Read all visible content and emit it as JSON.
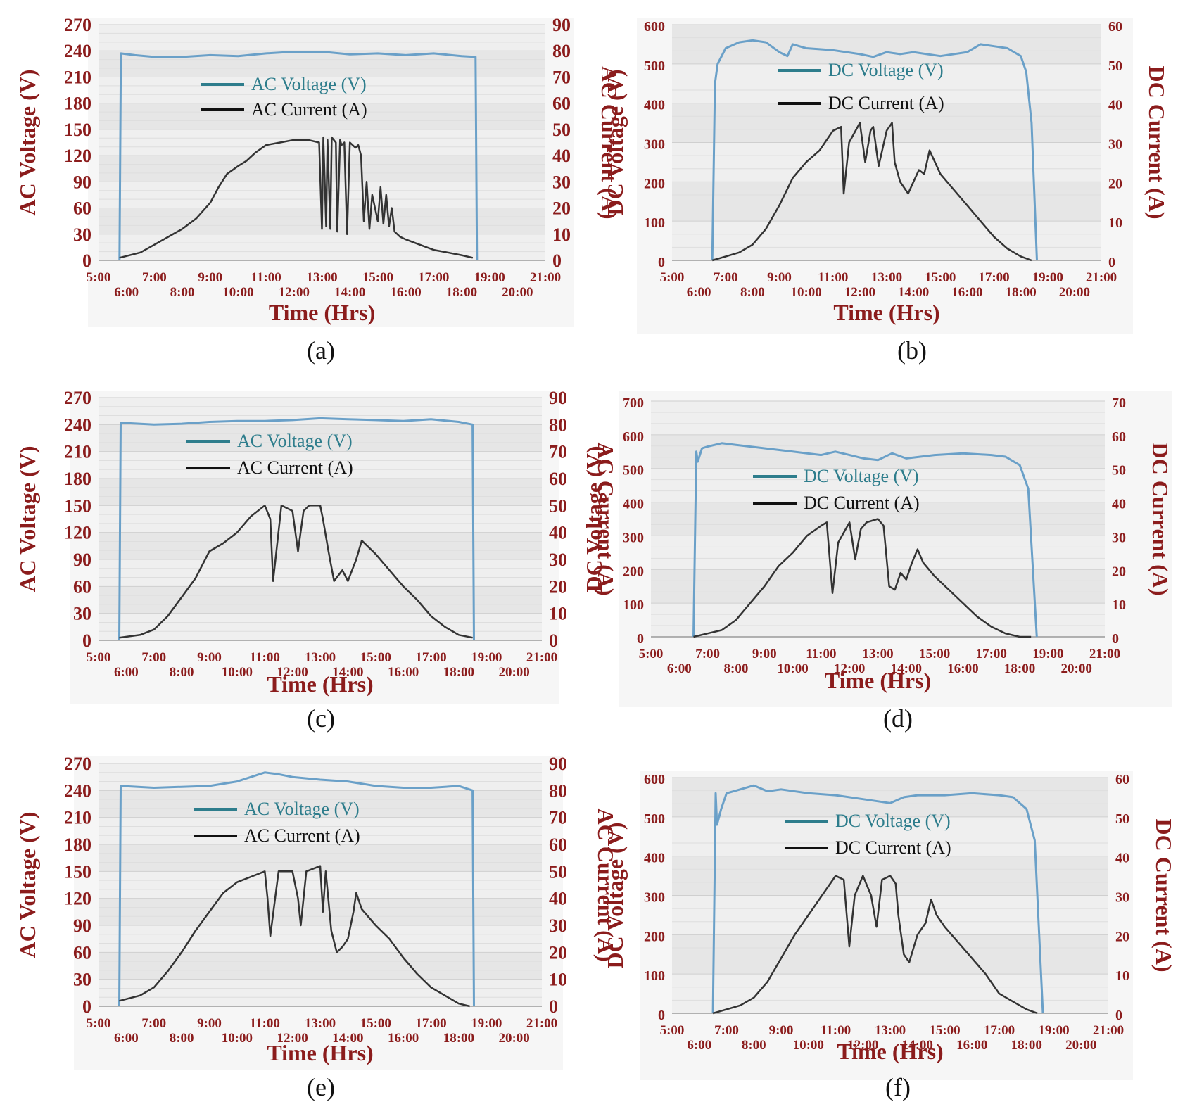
{
  "chart_data": [
    {
      "panel": "a",
      "kind": "AC",
      "type": "line",
      "caption": "(a)",
      "xlabel": "Time (Hrs)",
      "ylabel_left": "AC Voltage (V)",
      "ylabel_right": "AC Current (A)",
      "x_range": [
        5,
        21
      ],
      "x_ticks_upper": [
        "5:00",
        "7:00",
        "9:00",
        "11:00",
        "13:00",
        "15:00",
        "17:00",
        "19:00",
        "21:00"
      ],
      "x_ticks_lower": [
        "6:00",
        "8:00",
        "10:00",
        "12:00",
        "14:00",
        "16:00",
        "18:00",
        "20:00"
      ],
      "y_left_ticks": [
        "0",
        "30",
        "60",
        "90",
        "120",
        "150",
        "180",
        "210",
        "240",
        "270"
      ],
      "y_left_range": [
        0,
        270
      ],
      "y_right_ticks": [
        "0",
        "10",
        "20",
        "30",
        "40",
        "50",
        "60",
        "70",
        "80",
        "90"
      ],
      "y_right_range": [
        0,
        90
      ],
      "grid": true,
      "series": [
        {
          "name": "AC Voltage (V)",
          "color": "#6aa0c8",
          "axis": "left",
          "x": [
            5.75,
            5.8,
            6.3,
            7,
            8,
            9,
            10,
            11,
            12,
            13,
            14,
            15,
            16,
            17,
            18,
            18.5,
            18.55
          ],
          "y": [
            0,
            237,
            235,
            233,
            233,
            235,
            234,
            237,
            239,
            239,
            236,
            237,
            235,
            237,
            234,
            233,
            0
          ]
        },
        {
          "name": "AC Current (A)",
          "color": "#333333",
          "axis": "right",
          "x": [
            5.75,
            6.5,
            7,
            7.5,
            8,
            8.5,
            9,
            9.3,
            9.6,
            10,
            10.3,
            10.6,
            11,
            11.5,
            12,
            12.5,
            12.9,
            13.0,
            13.05,
            13.15,
            13.2,
            13.3,
            13.35,
            13.5,
            13.55,
            13.65,
            13.7,
            13.8,
            13.9,
            14,
            14.2,
            14.3,
            14.4,
            14.5,
            14.6,
            14.7,
            14.8,
            15,
            15.1,
            15.2,
            15.3,
            15.4,
            15.5,
            15.6,
            15.8,
            16,
            16.5,
            17,
            17.5,
            18,
            18.4
          ],
          "y": [
            1,
            3,
            6,
            9,
            12,
            16,
            22,
            28,
            33,
            36,
            38,
            41,
            44,
            45,
            46,
            46,
            45,
            12,
            47,
            13,
            46,
            12,
            47,
            45,
            11,
            46,
            44,
            45,
            10,
            45,
            43,
            44,
            40,
            15,
            30,
            12,
            25,
            15,
            28,
            14,
            25,
            13,
            20,
            11,
            9,
            8,
            6,
            4,
            3,
            2,
            1
          ]
        }
      ]
    },
    {
      "panel": "b",
      "kind": "DC",
      "type": "line",
      "caption": "(b)",
      "xlabel": "Time (Hrs)",
      "ylabel_left": "DC Voltage (V)",
      "ylabel_right": "DC Current (A)",
      "x_range": [
        5,
        21
      ],
      "x_ticks_upper": [
        "5:00",
        "7:00",
        "9:00",
        "11:00",
        "13:00",
        "15:00",
        "17:00",
        "19:00",
        "21:00"
      ],
      "x_ticks_lower": [
        "6:00",
        "8:00",
        "10:00",
        "12:00",
        "14:00",
        "16:00",
        "18:00",
        "20:00"
      ],
      "y_left_ticks": [
        "0",
        "100",
        "200",
        "300",
        "400",
        "500",
        "600"
      ],
      "y_left_range": [
        0,
        600
      ],
      "y_right_ticks": [
        "0",
        "10",
        "20",
        "30",
        "40",
        "50",
        "60"
      ],
      "y_right_range": [
        0,
        60
      ],
      "grid": true,
      "series": [
        {
          "name": "DC Voltage (V)",
          "color": "#6aa0c8",
          "axis": "left",
          "x": [
            6.5,
            6.6,
            6.7,
            7,
            7.5,
            8,
            8.5,
            9,
            9.3,
            9.5,
            10,
            11,
            12,
            12.5,
            13,
            13.5,
            14,
            15,
            16,
            16.5,
            17,
            17.5,
            18,
            18.2,
            18.4,
            18.6
          ],
          "y": [
            0,
            450,
            500,
            540,
            555,
            560,
            555,
            530,
            520,
            550,
            540,
            535,
            525,
            518,
            530,
            525,
            530,
            520,
            530,
            550,
            545,
            540,
            520,
            480,
            350,
            0
          ]
        },
        {
          "name": "DC Current (A)",
          "color": "#333333",
          "axis": "right",
          "x": [
            6.5,
            7,
            7.5,
            8,
            8.5,
            9,
            9.5,
            10,
            10.5,
            11,
            11.3,
            11.4,
            11.6,
            12,
            12.2,
            12.4,
            12.5,
            12.7,
            13,
            13.2,
            13.3,
            13.5,
            13.8,
            14,
            14.2,
            14.4,
            14.6,
            15,
            15.5,
            16,
            16.5,
            17,
            17.5,
            18,
            18.4
          ],
          "y": [
            0,
            1,
            2,
            4,
            8,
            14,
            21,
            25,
            28,
            33,
            34,
            17,
            30,
            35,
            25,
            33,
            34,
            24,
            33,
            35,
            25,
            20,
            17,
            20,
            23,
            22,
            28,
            22,
            18,
            14,
            10,
            6,
            3,
            1,
            0
          ]
        }
      ]
    },
    {
      "panel": "c",
      "kind": "AC",
      "type": "line",
      "caption": "(c)",
      "xlabel": "Time (Hrs)",
      "ylabel_left": "AC Voltage (V)",
      "ylabel_right": "AC Current (A)",
      "x_range": [
        5,
        21
      ],
      "x_ticks_upper": [
        "5:00",
        "7:00",
        "9:00",
        "11:00",
        "13:00",
        "15:00",
        "17:00",
        "19:00",
        "21:00"
      ],
      "x_ticks_lower": [
        "6:00",
        "8:00",
        "10:00",
        "12:00",
        "14:00",
        "16:00",
        "18:00",
        "20:00"
      ],
      "y_left_ticks": [
        "0",
        "30",
        "60",
        "90",
        "120",
        "150",
        "180",
        "210",
        "240",
        "270"
      ],
      "y_left_range": [
        0,
        270
      ],
      "y_right_ticks": [
        "0",
        "10",
        "20",
        "30",
        "40",
        "50",
        "60",
        "70",
        "80",
        "90"
      ],
      "y_right_range": [
        0,
        90
      ],
      "grid": true,
      "series": [
        {
          "name": "AC Voltage (V)",
          "color": "#6aa0c8",
          "axis": "left",
          "x": [
            5.75,
            5.8,
            7,
            8,
            9,
            10,
            11,
            12,
            13,
            14,
            15,
            16,
            17,
            18,
            18.5,
            18.55
          ],
          "y": [
            0,
            242,
            240,
            241,
            243,
            244,
            244,
            245,
            247,
            246,
            245,
            244,
            246,
            243,
            240,
            0
          ]
        },
        {
          "name": "AC Current (A)",
          "color": "#333333",
          "axis": "right",
          "x": [
            5.75,
            6.5,
            7,
            7.5,
            8,
            8.5,
            9,
            9.5,
            10,
            10.5,
            11,
            11.2,
            11.3,
            11.6,
            12,
            12.2,
            12.4,
            12.6,
            13,
            13.1,
            13.3,
            13.5,
            13.8,
            14,
            14.3,
            14.5,
            15,
            15.5,
            16,
            16.5,
            17,
            17.5,
            18,
            18.5
          ],
          "y": [
            1,
            2,
            4,
            9,
            16,
            23,
            33,
            36,
            40,
            46,
            50,
            45,
            22,
            50,
            48,
            33,
            48,
            50,
            50,
            45,
            33,
            22,
            26,
            22,
            30,
            37,
            32,
            26,
            20,
            15,
            9,
            5,
            2,
            1
          ]
        }
      ]
    },
    {
      "panel": "d",
      "kind": "DC",
      "type": "line",
      "caption": "(d)",
      "xlabel": "Time (Hrs)",
      "ylabel_left": "DC Voltage (V)",
      "ylabel_right": "DC Current (A)",
      "x_range": [
        5,
        21
      ],
      "x_ticks_upper": [
        "5:00",
        "7:00",
        "9:00",
        "11:00",
        "13:00",
        "15:00",
        "17:00",
        "19:00",
        "21:00"
      ],
      "x_ticks_lower": [
        "6:00",
        "8:00",
        "10:00",
        "12:00",
        "14:00",
        "16:00",
        "18:00",
        "20:00"
      ],
      "y_left_ticks": [
        "0",
        "100",
        "200",
        "300",
        "400",
        "500",
        "600",
        "700"
      ],
      "y_left_range": [
        0,
        700
      ],
      "y_right_ticks": [
        "0",
        "10",
        "20",
        "30",
        "40",
        "50",
        "60",
        "70"
      ],
      "y_right_range": [
        0,
        70
      ],
      "grid": true,
      "series": [
        {
          "name": "DC Voltage (V)",
          "color": "#6aa0c8",
          "axis": "left",
          "x": [
            6.5,
            6.6,
            6.65,
            6.8,
            7,
            7.5,
            8,
            9,
            10,
            11,
            11.5,
            12,
            12.5,
            13,
            13.5,
            14,
            15,
            16,
            17,
            17.5,
            18,
            18.3,
            18.6
          ],
          "y": [
            0,
            550,
            520,
            560,
            565,
            575,
            570,
            560,
            550,
            540,
            550,
            540,
            530,
            525,
            545,
            530,
            540,
            545,
            540,
            535,
            510,
            440,
            0
          ]
        },
        {
          "name": "DC Current (A)",
          "color": "#333333",
          "axis": "right",
          "x": [
            6.5,
            7,
            7.5,
            8,
            8.5,
            9,
            9.5,
            10,
            10.5,
            11,
            11.2,
            11.4,
            11.6,
            12,
            12.2,
            12.4,
            12.6,
            13,
            13.2,
            13.4,
            13.6,
            13.8,
            14,
            14.2,
            14.4,
            14.6,
            15,
            15.5,
            16,
            16.5,
            17,
            17.5,
            18,
            18.4
          ],
          "y": [
            0,
            1,
            2,
            5,
            10,
            15,
            21,
            25,
            30,
            33,
            34,
            13,
            28,
            34,
            23,
            32,
            34,
            35,
            33,
            15,
            14,
            19,
            17,
            22,
            26,
            22,
            18,
            14,
            10,
            6,
            3,
            1,
            0,
            0
          ]
        }
      ]
    },
    {
      "panel": "e",
      "kind": "AC",
      "type": "line",
      "caption": "(e)",
      "xlabel": "Time (Hrs)",
      "ylabel_left": "AC Voltage (V)",
      "ylabel_right": "AC Current (A)",
      "x_range": [
        5,
        21
      ],
      "x_ticks_upper": [
        "5:00",
        "7:00",
        "9:00",
        "11:00",
        "13:00",
        "15:00",
        "17:00",
        "19:00",
        "21:00"
      ],
      "x_ticks_lower": [
        "6:00",
        "8:00",
        "10:00",
        "12:00",
        "14:00",
        "16:00",
        "18:00",
        "20:00"
      ],
      "y_left_ticks": [
        "0",
        "30",
        "60",
        "90",
        "120",
        "150",
        "180",
        "210",
        "240",
        "270"
      ],
      "y_left_range": [
        0,
        270
      ],
      "y_right_ticks": [
        "0",
        "10",
        "20",
        "30",
        "40",
        "50",
        "60",
        "70",
        "80",
        "90"
      ],
      "y_right_range": [
        0,
        90
      ],
      "grid": true,
      "series": [
        {
          "name": "AC Voltage (V)",
          "color": "#6aa0c8",
          "axis": "left",
          "x": [
            5.75,
            5.8,
            7,
            8,
            9,
            10,
            10.5,
            11,
            11.5,
            12,
            13,
            14,
            15,
            16,
            17,
            18,
            18.5,
            18.55
          ],
          "y": [
            0,
            245,
            243,
            244,
            245,
            250,
            255,
            260,
            258,
            255,
            252,
            250,
            245,
            243,
            243,
            245,
            240,
            0
          ]
        },
        {
          "name": "AC Current (A)",
          "color": "#333333",
          "axis": "right",
          "x": [
            5.75,
            6.5,
            7,
            7.5,
            8,
            8.5,
            9,
            9.5,
            10,
            10.5,
            11,
            11.1,
            11.2,
            11.5,
            12,
            12.2,
            12.3,
            12.5,
            13,
            13.1,
            13.2,
            13.4,
            13.6,
            13.8,
            14,
            14.2,
            14.3,
            14.5,
            15,
            15.5,
            16,
            16.5,
            17,
            17.5,
            18,
            18.4
          ],
          "y": [
            2,
            4,
            7,
            13,
            20,
            28,
            35,
            42,
            46,
            48,
            50,
            40,
            26,
            50,
            50,
            40,
            30,
            50,
            52,
            35,
            50,
            28,
            20,
            22,
            25,
            35,
            42,
            36,
            30,
            25,
            18,
            12,
            7,
            4,
            1,
            0
          ]
        }
      ]
    },
    {
      "panel": "f",
      "kind": "DC",
      "type": "line",
      "caption": "(f)",
      "xlabel": "Time (Hrs)",
      "ylabel_left": "DC Voltage (V)",
      "ylabel_right": "DC Current (A)",
      "x_range": [
        5,
        21
      ],
      "x_ticks_upper": [
        "5:00",
        "7:00",
        "9:00",
        "11:00",
        "13:00",
        "15:00",
        "17:00",
        "19:00",
        "21:00"
      ],
      "x_ticks_lower": [
        "6:00",
        "8:00",
        "10:00",
        "12:00",
        "14:00",
        "16:00",
        "18:00",
        "20:00"
      ],
      "y_left_ticks": [
        "0",
        "100",
        "200",
        "300",
        "400",
        "500",
        "600"
      ],
      "y_left_range": [
        0,
        600
      ],
      "y_right_ticks": [
        "0",
        "10",
        "20",
        "30",
        "40",
        "50",
        "60"
      ],
      "y_right_range": [
        0,
        60
      ],
      "grid": true,
      "series": [
        {
          "name": "DC Voltage (V)",
          "color": "#6aa0c8",
          "axis": "left",
          "x": [
            6.5,
            6.6,
            6.65,
            6.8,
            7,
            7.5,
            8,
            8.5,
            9,
            10,
            11,
            12,
            13,
            13.5,
            14,
            15,
            16,
            17,
            17.5,
            18,
            18.3,
            18.6
          ],
          "y": [
            0,
            560,
            480,
            520,
            560,
            570,
            580,
            565,
            570,
            560,
            555,
            545,
            535,
            550,
            555,
            555,
            560,
            555,
            550,
            520,
            440,
            0
          ]
        },
        {
          "name": "DC Current (A)",
          "color": "#333333",
          "axis": "right",
          "x": [
            6.5,
            7,
            7.5,
            8,
            8.5,
            9,
            9.5,
            10,
            10.5,
            11,
            11.3,
            11.5,
            11.7,
            12,
            12.3,
            12.5,
            12.7,
            13,
            13.2,
            13.3,
            13.5,
            13.7,
            14,
            14.3,
            14.5,
            14.7,
            15,
            15.5,
            16,
            16.5,
            17,
            17.5,
            18,
            18.4
          ],
          "y": [
            0,
            1,
            2,
            4,
            8,
            14,
            20,
            25,
            30,
            35,
            34,
            17,
            30,
            35,
            30,
            22,
            34,
            35,
            33,
            25,
            15,
            13,
            20,
            23,
            29,
            25,
            22,
            18,
            14,
            10,
            5,
            3,
            1,
            0
          ]
        }
      ]
    }
  ]
}
